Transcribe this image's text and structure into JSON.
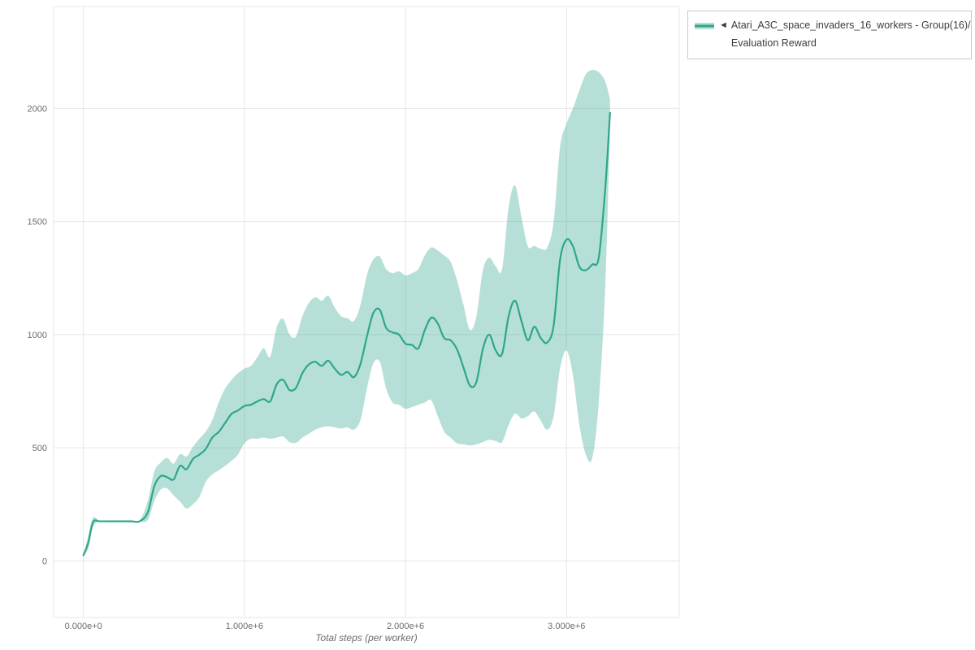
{
  "chart_data": {
    "type": "line",
    "title": "",
    "xlabel": "Total steps (per worker)",
    "ylabel": "",
    "legend_position": "outside-top-right",
    "grid": true,
    "legend": {
      "collapse_marker": "◄",
      "series_name": "Atari_A3C_space_invaders_16_workers - Group(16)/",
      "series_name_line2": "Evaluation Reward"
    },
    "colors": {
      "line": "#2ea68b",
      "band": "#2ea68b",
      "band_opacity": 0.35,
      "grid": "#e6e6e6",
      "tick_text": "#6b6b6b"
    },
    "xlim": [
      -185000,
      3700000
    ],
    "ylim": [
      -250,
      2450
    ],
    "xticks": [
      {
        "value": 0,
        "label": "0.000e+0"
      },
      {
        "value": 1000000,
        "label": "1.000e+6"
      },
      {
        "value": 2000000,
        "label": "2.000e+6"
      },
      {
        "value": 3000000,
        "label": "3.000e+6"
      }
    ],
    "yticks": [
      {
        "value": 0,
        "label": "0"
      },
      {
        "value": 500,
        "label": "500"
      },
      {
        "value": 1000,
        "label": "1000"
      },
      {
        "value": 1500,
        "label": "1500"
      },
      {
        "value": 2000,
        "label": "2000"
      }
    ],
    "series": [
      {
        "name": "Atari_A3C_space_invaders_16_workers - Group(16)/Evaluation Reward",
        "x": [
          0,
          30000,
          60000,
          100000,
          150000,
          200000,
          250000,
          300000,
          350000,
          400000,
          440000,
          480000,
          520000,
          560000,
          600000,
          640000,
          680000,
          720000,
          760000,
          800000,
          840000,
          880000,
          920000,
          960000,
          1000000,
          1040000,
          1080000,
          1120000,
          1160000,
          1200000,
          1240000,
          1280000,
          1320000,
          1360000,
          1400000,
          1440000,
          1480000,
          1520000,
          1560000,
          1600000,
          1640000,
          1680000,
          1720000,
          1760000,
          1800000,
          1840000,
          1880000,
          1920000,
          1960000,
          2000000,
          2040000,
          2080000,
          2120000,
          2160000,
          2200000,
          2240000,
          2280000,
          2320000,
          2360000,
          2400000,
          2440000,
          2480000,
          2520000,
          2560000,
          2600000,
          2640000,
          2680000,
          2720000,
          2760000,
          2800000,
          2840000,
          2880000,
          2920000,
          2960000,
          3000000,
          3040000,
          3080000,
          3120000,
          3160000,
          3200000,
          3240000,
          3270000
        ],
        "y": [
          25,
          80,
          172,
          175,
          175,
          175,
          175,
          175,
          175,
          215,
          330,
          375,
          370,
          360,
          420,
          405,
          450,
          470,
          495,
          545,
          570,
          610,
          650,
          665,
          685,
          690,
          705,
          715,
          705,
          780,
          800,
          755,
          765,
          830,
          868,
          880,
          862,
          885,
          850,
          822,
          835,
          812,
          870,
          990,
          1095,
          1110,
          1030,
          1010,
          1000,
          960,
          955,
          940,
          1020,
          1075,
          1050,
          985,
          975,
          935,
          855,
          775,
          790,
          935,
          1000,
          930,
          915,
          1080,
          1150,
          1060,
          975,
          1035,
          985,
          965,
          1040,
          1330,
          1420,
          1390,
          1300,
          1285,
          1310,
          1340,
          1640,
          1980
        ],
        "y_lower": [
          25,
          55,
          150,
          175,
          175,
          175,
          175,
          175,
          175,
          180,
          265,
          315,
          320,
          290,
          262,
          232,
          250,
          282,
          350,
          382,
          400,
          420,
          442,
          470,
          520,
          540,
          540,
          545,
          540,
          545,
          550,
          525,
          522,
          545,
          562,
          580,
          590,
          595,
          590,
          585,
          590,
          580,
          622,
          760,
          872,
          880,
          762,
          700,
          690,
          672,
          680,
          690,
          700,
          710,
          640,
          572,
          545,
          520,
          515,
          510,
          515,
          525,
          535,
          530,
          525,
          600,
          650,
          630,
          640,
          660,
          620,
          580,
          640,
          850,
          930,
          820,
          600,
          470,
          455,
          700,
          1200,
          1900
        ],
        "y_upper": [
          25,
          110,
          192,
          175,
          175,
          175,
          175,
          175,
          180,
          265,
          395,
          435,
          455,
          430,
          472,
          462,
          505,
          540,
          572,
          622,
          700,
          762,
          800,
          830,
          850,
          862,
          900,
          940,
          902,
          1032,
          1070,
          1000,
          992,
          1082,
          1140,
          1165,
          1150,
          1172,
          1120,
          1082,
          1072,
          1060,
          1130,
          1262,
          1332,
          1345,
          1290,
          1272,
          1280,
          1262,
          1272,
          1290,
          1350,
          1385,
          1372,
          1350,
          1322,
          1240,
          1132,
          1022,
          1080,
          1282,
          1340,
          1302,
          1290,
          1560,
          1660,
          1520,
          1390,
          1392,
          1380,
          1385,
          1500,
          1830,
          1932,
          2000,
          2080,
          2150,
          2170,
          2160,
          2120,
          2040
        ]
      }
    ]
  }
}
